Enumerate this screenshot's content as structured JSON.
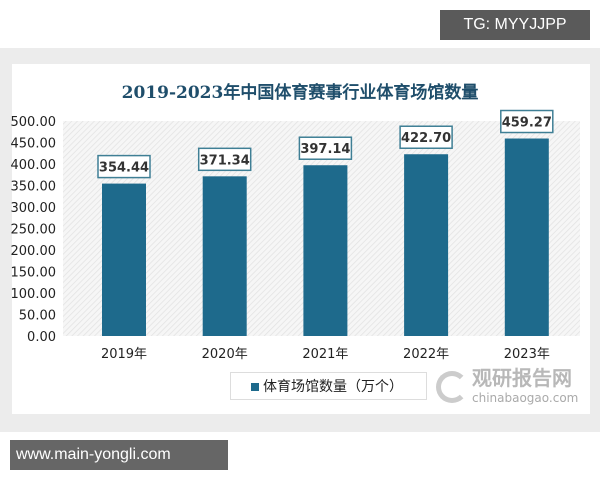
{
  "watermarks": {
    "tg": "TG: MYYJJPP",
    "site": "www.main-yongli.com",
    "brand_cn": "观研报告网",
    "brand_en": "chinabaogao.com"
  },
  "chart_data": {
    "type": "bar",
    "title": "2019-2023年中国体育赛事行业体育场馆数量",
    "categories": [
      "2019年",
      "2020年",
      "2021年",
      "2022年",
      "2023年"
    ],
    "series": [
      {
        "name": "体育场馆数量（万个）",
        "values": [
          354.44,
          371.34,
          397.14,
          422.7,
          459.27
        ],
        "color": "#1e6a8c"
      }
    ],
    "data_labels": [
      "354.44",
      "371.34",
      "397.14",
      "422.70",
      "459.27"
    ],
    "ylim": [
      0,
      500
    ],
    "yticks": [
      "0.00",
      "50.00",
      "100.00",
      "150.00",
      "200.00",
      "250.00",
      "300.00",
      "350.00",
      "400.00",
      "450.00",
      "500.00"
    ],
    "legend": "bottom",
    "xlabel": "",
    "ylabel": ""
  }
}
